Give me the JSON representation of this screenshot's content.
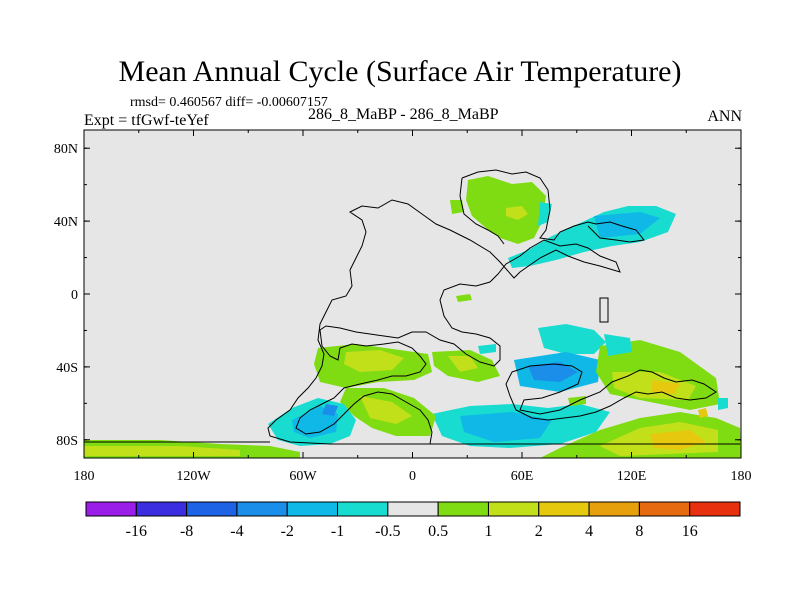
{
  "title": "Mean Annual Cycle (Surface Air Temperature)",
  "stats_line": "rmsd= 0.460567 diff= -0.00607157",
  "experiment": "Expt = tfGwf-teYef",
  "cases": "286_8_MaBP - 286_8_MaBP",
  "season": "ANN",
  "map": {
    "lon_range": [
      -180,
      180
    ],
    "lat_range": [
      -90,
      90
    ],
    "lat_ticks": [
      "80N",
      "40N",
      "0",
      "40S",
      "80S"
    ],
    "lon_ticks": [
      "180",
      "120W",
      "60W",
      "0",
      "60E",
      "120E",
      "180"
    ],
    "background_color": "#e6e6e6"
  },
  "colorbar": {
    "colors": [
      "#9b1ee8",
      "#3a2ee0",
      "#1e62e6",
      "#1a8ee8",
      "#0fb8e6",
      "#18dcd0",
      "#e6e6e6",
      "#80dc12",
      "#c2e01a",
      "#e6c80e",
      "#e6a00c",
      "#e66a10",
      "#e6300e"
    ],
    "labels": [
      "-16",
      "-8",
      "-4",
      "-2",
      "-1",
      "-0.5",
      "0.5",
      "1",
      "2",
      "4",
      "8",
      "16"
    ]
  }
}
